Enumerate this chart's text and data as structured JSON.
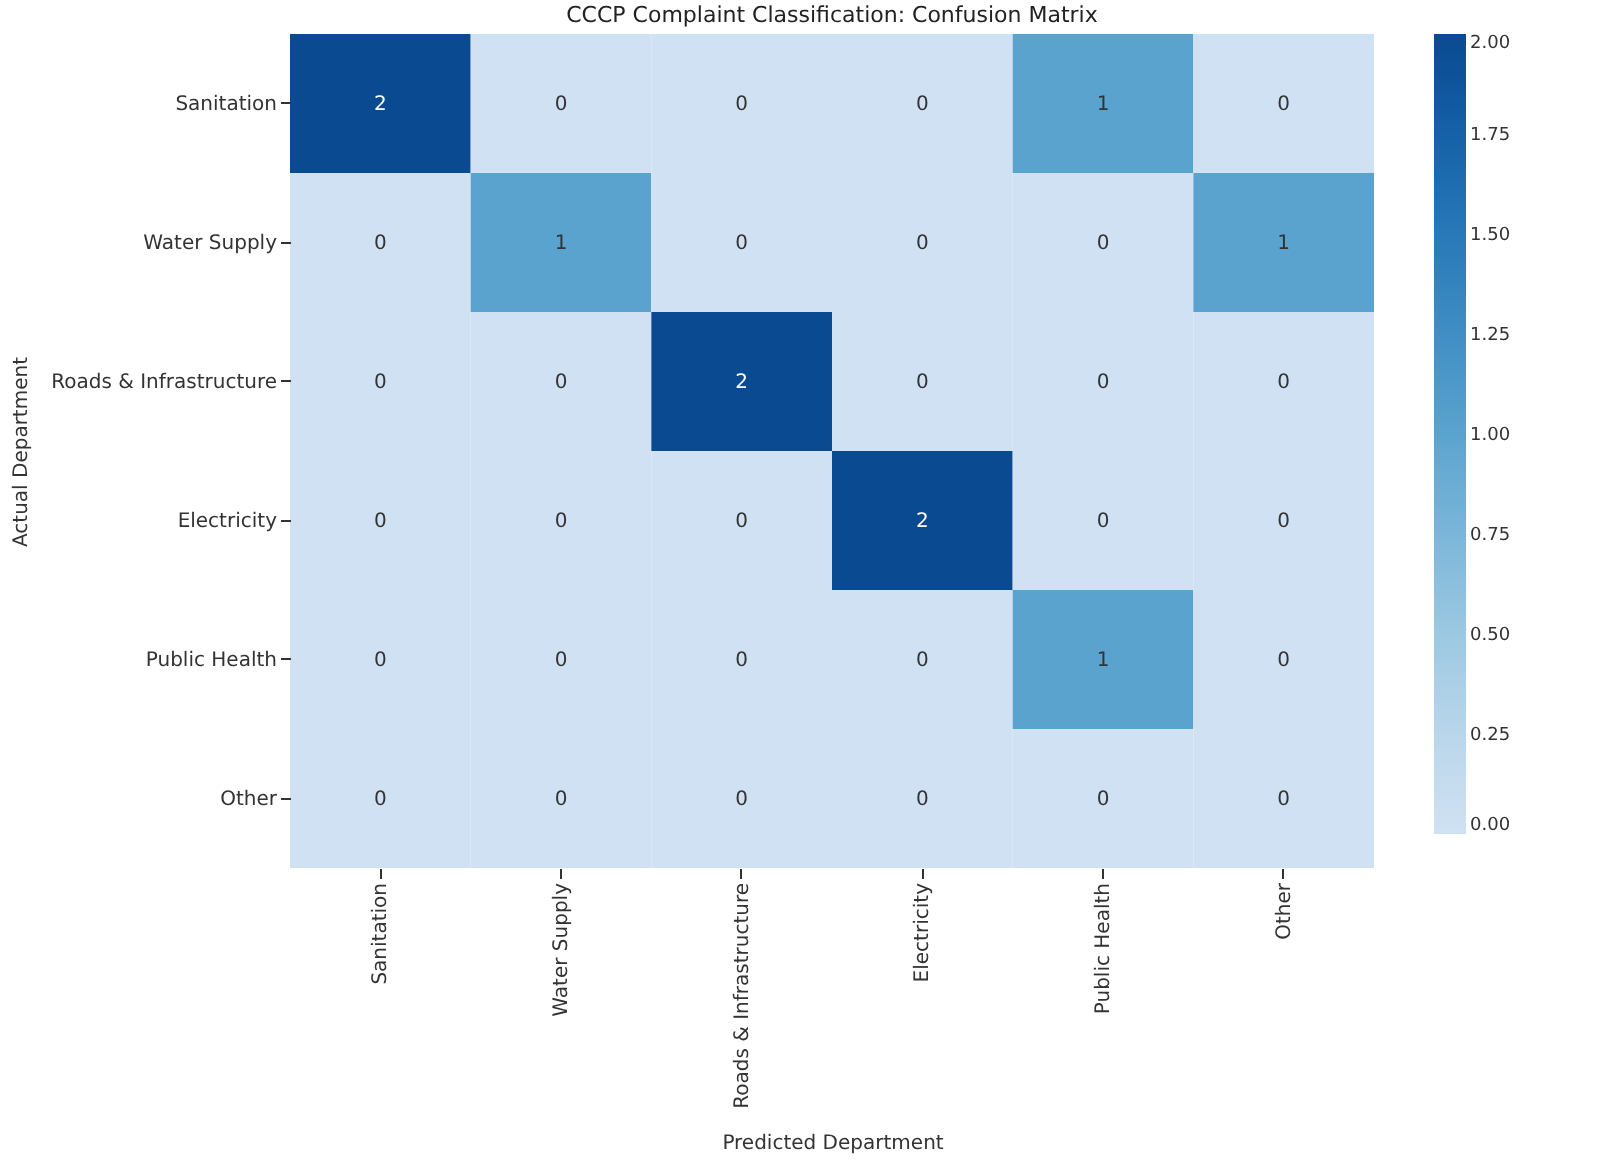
{
  "chart_data": {
    "type": "heatmap",
    "title": "CCCP Complaint Classification: Confusion Matrix",
    "xlabel": "Predicted Department",
    "ylabel": "Actual Department",
    "categories": [
      "Sanitation",
      "Water Supply",
      "Roads & Infrastructure",
      "Electricity",
      "Public Health",
      "Other"
    ],
    "y_categories": [
      "Sanitation",
      "Water Supply",
      "Roads & Infrastructure",
      "Electricity",
      "Public Health",
      "Other"
    ],
    "cells": [
      [
        2,
        0,
        0,
        0,
        1,
        0
      ],
      [
        0,
        1,
        0,
        0,
        0,
        1
      ],
      [
        0,
        0,
        2,
        0,
        0,
        0
      ],
      [
        0,
        0,
        0,
        2,
        0,
        0
      ],
      [
        0,
        0,
        0,
        0,
        1,
        0
      ],
      [
        0,
        0,
        0,
        0,
        0,
        0
      ]
    ],
    "data_labels": true,
    "clim": [
      0,
      2
    ],
    "cticks": [
      {
        "value": 0,
        "label": "0.00"
      },
      {
        "value": 0.25,
        "label": "0.25"
      },
      {
        "value": 0.5,
        "label": "0.50"
      },
      {
        "value": 0.75,
        "label": "0.75"
      },
      {
        "value": 1,
        "label": "1.00"
      },
      {
        "value": 1.25,
        "label": "1.25"
      },
      {
        "value": 1.5,
        "label": "1.50"
      },
      {
        "value": 1.75,
        "label": "1.75"
      },
      {
        "value": 2,
        "label": "2.00"
      }
    ]
  }
}
